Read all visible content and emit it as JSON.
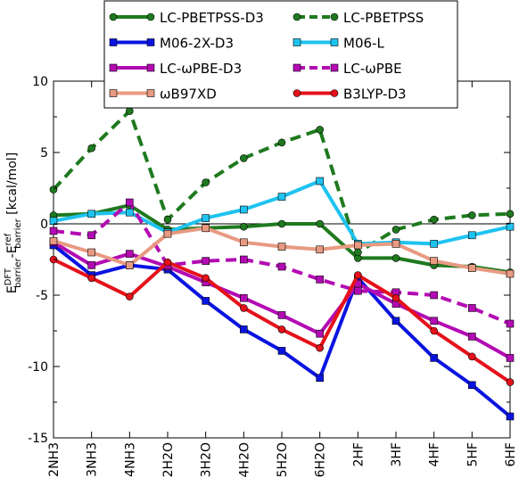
{
  "chart_data": {
    "type": "line",
    "categories": [
      "2NH3",
      "3NH3",
      "4NH3",
      "2H2O",
      "3H2O",
      "4H2O",
      "5H2O",
      "6H2O",
      "2HF",
      "3HF",
      "4HF",
      "5HF",
      "6HF"
    ],
    "ylabel_main": "E",
    "ylabel_sup1": "DFT",
    "ylabel_sub1": "barrier",
    "ylabel_mid": "-E",
    "ylabel_sup2": "ref",
    "ylabel_sub2": "barrier",
    "ylabel_units": " [kcal/mol]",
    "ylim": [
      -15,
      10
    ],
    "yticks": [
      10,
      5,
      0,
      -5,
      -10,
      -15
    ],
    "reference_line": 0,
    "grid": false,
    "legend_position": "top",
    "series": [
      {
        "name": "LC-PBETPSS-D3",
        "color": "#1f7a1f",
        "dash": "solid",
        "marker": "circle",
        "values": [
          0.6,
          0.7,
          1.3,
          -0.4,
          -0.3,
          -0.2,
          0.0,
          0.0,
          -2.4,
          -2.4,
          -2.9,
          -3.0,
          -3.4
        ]
      },
      {
        "name": "LC-PBETPSS",
        "color": "#1f7a1f",
        "dash": "dashed",
        "marker": "circle",
        "values": [
          2.4,
          5.3,
          7.9,
          0.3,
          2.9,
          4.6,
          5.7,
          6.6,
          -2.0,
          -0.4,
          0.3,
          0.6,
          0.7
        ]
      },
      {
        "name": "M06-2X-D3",
        "color": "#0a14e0",
        "dash": "solid",
        "marker": "square",
        "values": [
          -1.5,
          -3.6,
          -2.9,
          -3.2,
          -5.4,
          -7.4,
          -8.9,
          -10.8,
          -3.8,
          -6.8,
          -9.4,
          -11.3,
          -13.5
        ]
      },
      {
        "name": "M06-L",
        "color": "#1ec3f0",
        "dash": "solid",
        "marker": "square",
        "values": [
          0.2,
          0.7,
          0.8,
          -0.6,
          0.4,
          1.0,
          1.9,
          3.0,
          -1.4,
          -1.3,
          -1.4,
          -0.8,
          -0.2
        ]
      },
      {
        "name": "LC-ωPBE-D3",
        "color": "#b30bb3",
        "dash": "solid",
        "marker": "square",
        "values": [
          -1.3,
          -2.9,
          -2.1,
          -3.0,
          -4.1,
          -5.2,
          -6.4,
          -7.7,
          -4.2,
          -5.6,
          -6.8,
          -7.9,
          -9.4
        ]
      },
      {
        "name": "LC-ωPBE",
        "color": "#b30bb3",
        "dash": "dashed",
        "marker": "square",
        "values": [
          -0.5,
          -0.8,
          1.5,
          -2.9,
          -2.6,
          -2.5,
          -3.0,
          -3.9,
          -4.7,
          -4.8,
          -5.0,
          -5.9,
          -7.0
        ]
      },
      {
        "name": "ωB97XD",
        "color": "#e89a82",
        "dash": "solid",
        "marker": "square",
        "values": [
          -1.2,
          -2.0,
          -2.9,
          -0.7,
          -0.3,
          -1.3,
          -1.6,
          -1.8,
          -1.5,
          -1.4,
          -2.6,
          -3.1,
          -3.5
        ]
      },
      {
        "name": "B3LYP-D3",
        "color": "#e5111a",
        "dash": "solid",
        "marker": "circle",
        "values": [
          -2.5,
          -3.8,
          -5.1,
          -2.7,
          -3.8,
          -5.9,
          -7.4,
          -8.7,
          -3.6,
          -5.2,
          -7.5,
          -9.3,
          -11.1
        ]
      }
    ]
  }
}
